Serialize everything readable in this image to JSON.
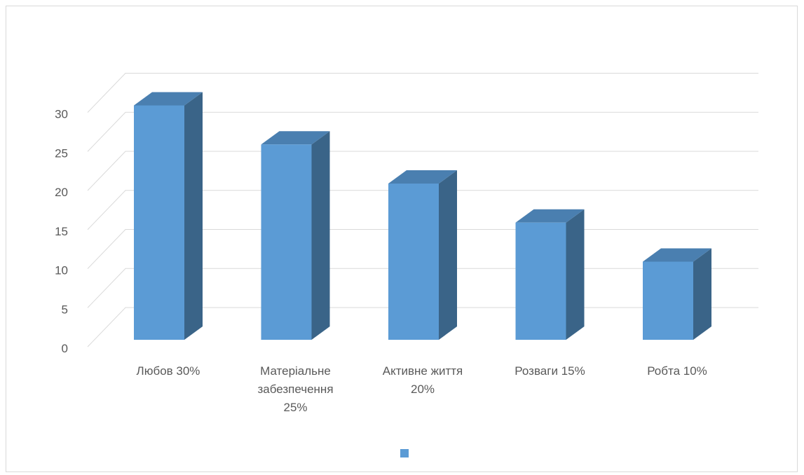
{
  "chart_data": {
    "type": "bar",
    "style": "3d-column",
    "categories": [
      [
        "Любов 30%"
      ],
      [
        "Матеріальне",
        "забезпечення",
        "25%"
      ],
      [
        "Активне життя",
        "20%"
      ],
      [
        "Розваги 15%"
      ],
      [
        "Робта 10%"
      ]
    ],
    "values": [
      30,
      25,
      20,
      15,
      10
    ],
    "ylim": [
      0,
      30
    ],
    "yticks": [
      0,
      5,
      10,
      15,
      20,
      25,
      30
    ],
    "grid": true,
    "legend": "bottom",
    "colors": {
      "front": "#5b9bd5",
      "side": "#3a6488",
      "top": "#4a7fb0",
      "grid": "#d9d9d9",
      "text": "#595959"
    }
  }
}
